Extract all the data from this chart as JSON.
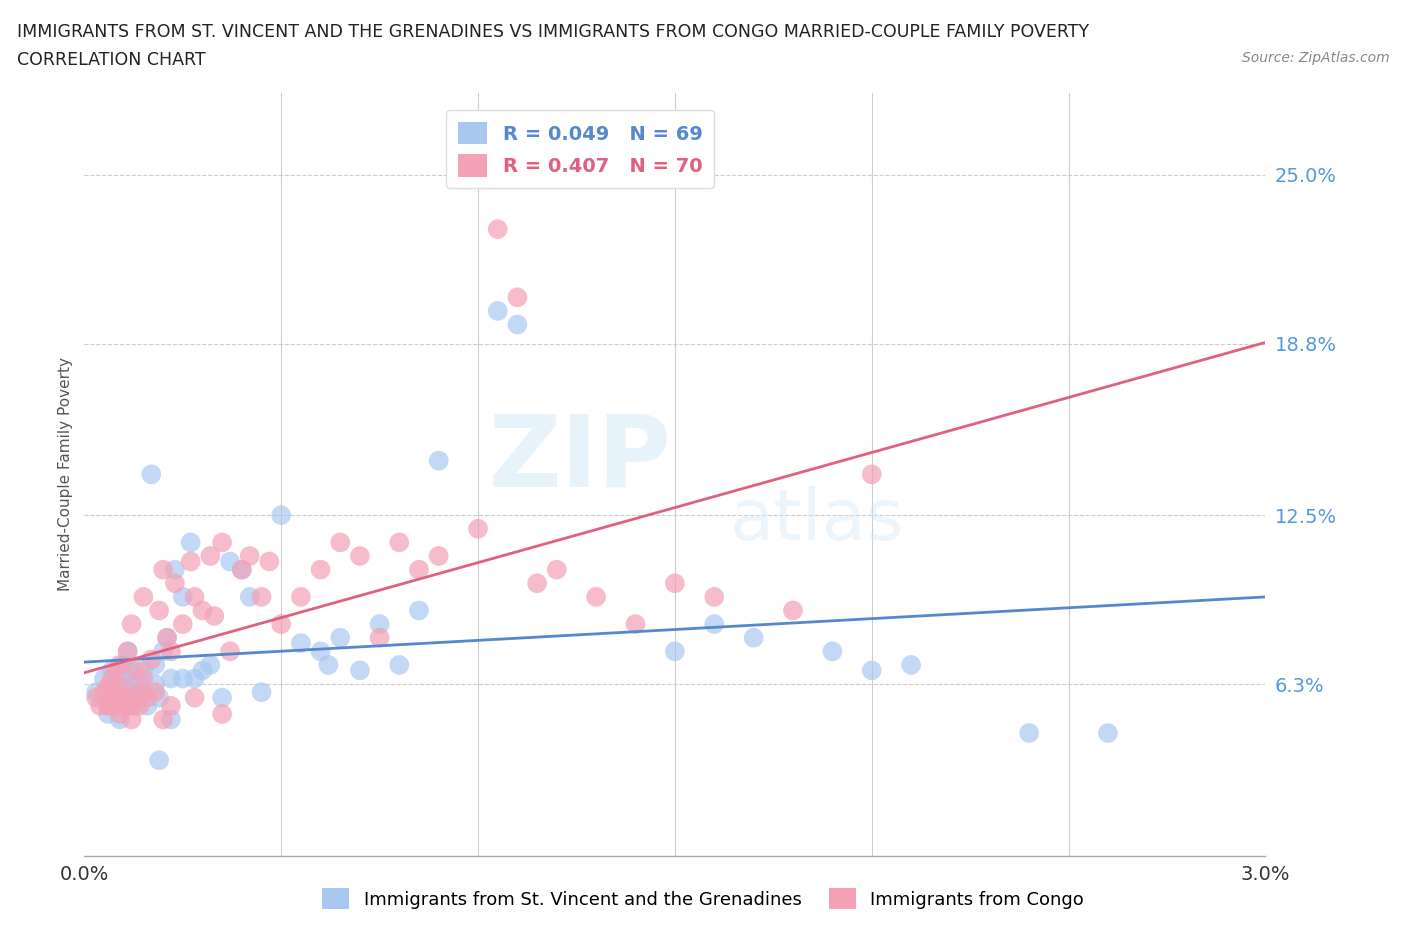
{
  "title_line1": "IMMIGRANTS FROM ST. VINCENT AND THE GRENADINES VS IMMIGRANTS FROM CONGO MARRIED-COUPLE FAMILY POVERTY",
  "title_line2": "CORRELATION CHART",
  "source": "Source: ZipAtlas.com",
  "ylabel": "Married-Couple Family Poverty",
  "xlim": [
    0.0,
    3.0
  ],
  "ylim": [
    0.0,
    28.0
  ],
  "yticks": [
    6.3,
    12.5,
    18.8,
    25.0
  ],
  "ytick_labels": [
    "6.3%",
    "12.5%",
    "18.8%",
    "25.0%"
  ],
  "color_blue": "#a8c8f0",
  "color_pink": "#f4a0b5",
  "color_blue_line": "#5588cc",
  "color_pink_line": "#e06080",
  "legend_blue_r": "R = 0.049",
  "legend_blue_n": "N = 69",
  "legend_pink_r": "R = 0.407",
  "legend_pink_n": "N = 70",
  "blue_scatter_x": [
    0.03,
    0.05,
    0.06,
    0.07,
    0.07,
    0.08,
    0.08,
    0.09,
    0.09,
    0.1,
    0.1,
    0.11,
    0.11,
    0.12,
    0.12,
    0.13,
    0.13,
    0.14,
    0.14,
    0.15,
    0.15,
    0.16,
    0.17,
    0.18,
    0.18,
    0.19,
    0.2,
    0.21,
    0.22,
    0.23,
    0.25,
    0.27,
    0.28,
    0.3,
    0.32,
    0.35,
    0.37,
    0.4,
    0.42,
    0.45,
    0.5,
    0.55,
    0.6,
    0.62,
    0.65,
    0.7,
    0.75,
    0.8,
    0.85,
    0.9,
    1.05,
    1.1,
    1.5,
    1.6,
    1.7,
    1.9,
    2.0,
    2.1,
    2.4,
    2.6,
    0.06,
    0.07,
    0.08,
    0.09,
    0.1,
    0.11,
    0.19,
    0.22,
    0.25
  ],
  "blue_scatter_y": [
    6.0,
    6.5,
    5.5,
    6.2,
    6.8,
    5.8,
    6.3,
    5.5,
    6.0,
    7.0,
    6.5,
    5.8,
    7.5,
    6.0,
    6.8,
    5.5,
    6.2,
    5.8,
    6.4,
    6.0,
    6.8,
    5.5,
    14.0,
    6.3,
    7.0,
    5.8,
    7.5,
    8.0,
    6.5,
    10.5,
    9.5,
    11.5,
    6.5,
    6.8,
    7.0,
    5.8,
    10.8,
    10.5,
    9.5,
    6.0,
    12.5,
    7.8,
    7.5,
    7.0,
    8.0,
    6.8,
    8.5,
    7.0,
    9.0,
    14.5,
    20.0,
    19.5,
    7.5,
    8.5,
    8.0,
    7.5,
    6.8,
    7.0,
    4.5,
    4.5,
    5.2,
    5.5,
    5.8,
    5.0,
    6.5,
    5.5,
    3.5,
    5.0,
    6.5
  ],
  "pink_scatter_x": [
    0.03,
    0.04,
    0.05,
    0.06,
    0.06,
    0.07,
    0.07,
    0.08,
    0.08,
    0.09,
    0.09,
    0.1,
    0.1,
    0.11,
    0.12,
    0.12,
    0.13,
    0.14,
    0.15,
    0.15,
    0.16,
    0.17,
    0.18,
    0.19,
    0.2,
    0.21,
    0.22,
    0.23,
    0.25,
    0.27,
    0.28,
    0.3,
    0.32,
    0.33,
    0.35,
    0.37,
    0.4,
    0.42,
    0.45,
    0.47,
    0.5,
    0.55,
    0.6,
    0.65,
    0.7,
    0.75,
    0.8,
    0.85,
    0.9,
    1.0,
    1.05,
    1.1,
    1.15,
    1.2,
    1.3,
    1.4,
    1.5,
    1.6,
    1.8,
    2.0,
    0.07,
    0.08,
    0.09,
    0.12,
    0.13,
    0.14,
    0.2,
    0.22,
    0.28,
    0.35
  ],
  "pink_scatter_y": [
    5.8,
    5.5,
    6.0,
    6.2,
    5.5,
    6.5,
    5.8,
    6.0,
    6.8,
    5.5,
    7.0,
    6.2,
    5.8,
    7.5,
    5.5,
    8.5,
    6.8,
    6.0,
    6.5,
    9.5,
    5.8,
    7.2,
    6.0,
    9.0,
    10.5,
    8.0,
    7.5,
    10.0,
    8.5,
    10.8,
    9.5,
    9.0,
    11.0,
    8.8,
    11.5,
    7.5,
    10.5,
    11.0,
    9.5,
    10.8,
    8.5,
    9.5,
    10.5,
    11.5,
    11.0,
    8.0,
    11.5,
    10.5,
    11.0,
    12.0,
    23.0,
    20.5,
    10.0,
    10.5,
    9.5,
    8.5,
    10.0,
    9.5,
    9.0,
    14.0,
    5.5,
    5.8,
    5.2,
    5.0,
    5.8,
    5.5,
    5.0,
    5.5,
    5.8,
    5.2
  ]
}
